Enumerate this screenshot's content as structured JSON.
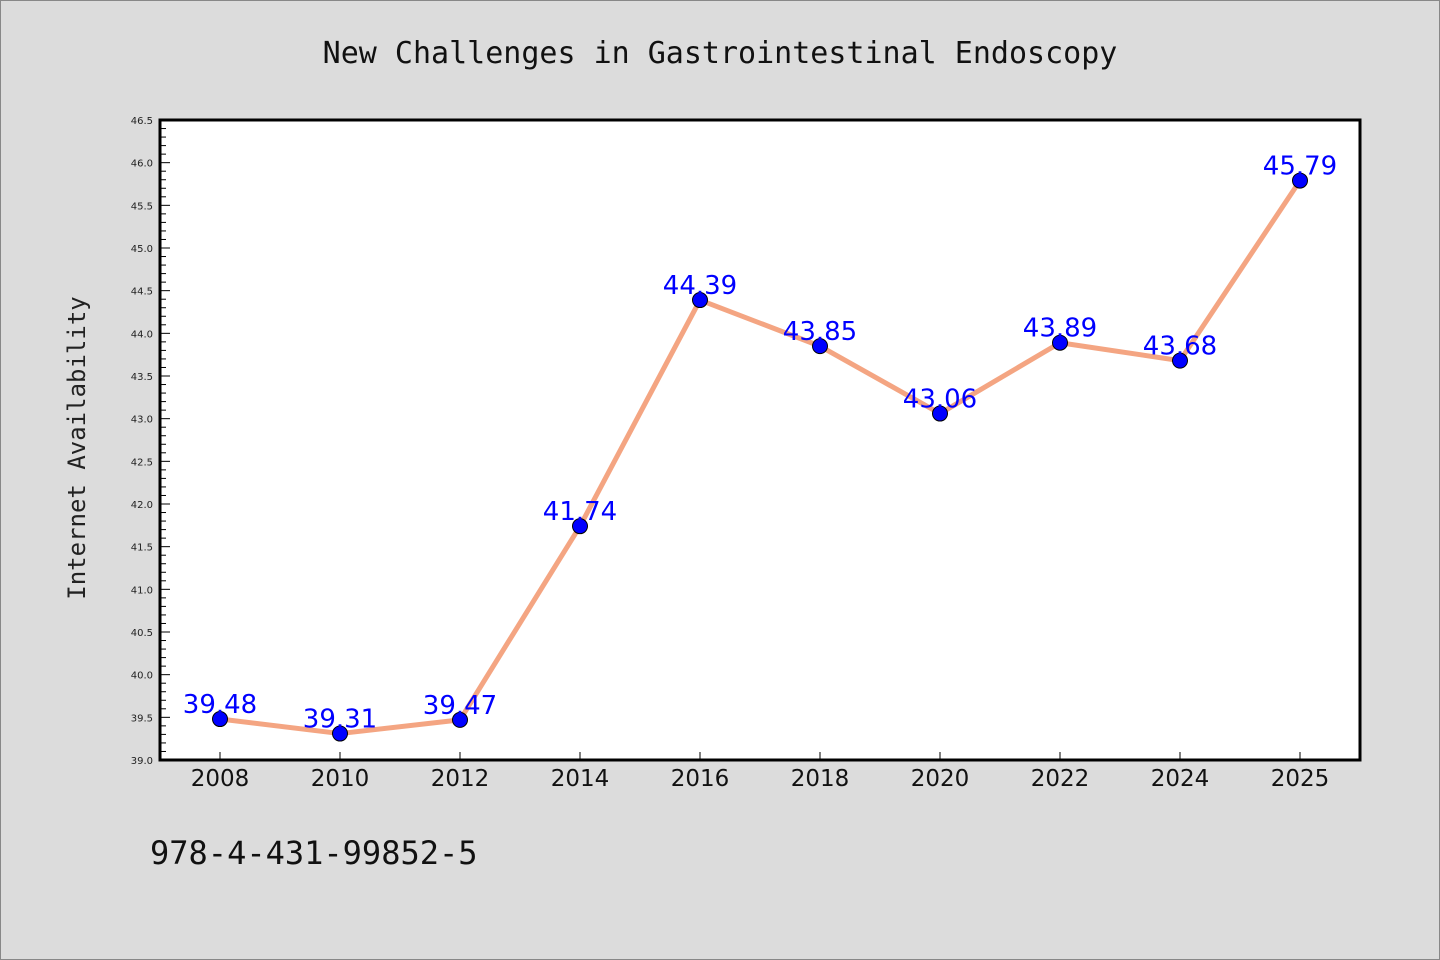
{
  "chart_data": {
    "type": "line",
    "title": "New Challenges in Gastrointestinal Endoscopy",
    "xlabel": "",
    "ylabel": "Internet Availability",
    "categories": [
      "2008",
      "2010",
      "2012",
      "2014",
      "2016",
      "2018",
      "2020",
      "2022",
      "2024",
      "2025"
    ],
    "values": [
      39.48,
      39.31,
      39.47,
      41.74,
      44.39,
      43.85,
      43.06,
      43.89,
      43.68,
      45.79
    ],
    "data_labels": [
      "39.48",
      "39.31",
      "39.47",
      "41.74",
      "44.39",
      "43.85",
      "43.06",
      "43.89",
      "43.68",
      "45.79"
    ],
    "yticks": [
      "39.0",
      "39.5",
      "40.0",
      "40.5",
      "41.0",
      "41.5",
      "42.0",
      "42.5",
      "43.0",
      "43.5",
      "44.0",
      "44.5",
      "45.0",
      "45.5",
      "46.0",
      "46.5"
    ],
    "ylim": [
      39.0,
      46.5
    ],
    "grid": false,
    "legend": "none",
    "colors": {
      "line": "#f4a582",
      "marker": "#0000ff",
      "label": "#0000ff",
      "background": "#dcdcdc",
      "plot_background": "#ffffff"
    }
  },
  "footer": {
    "isbn": "978-4-431-99852-5"
  }
}
